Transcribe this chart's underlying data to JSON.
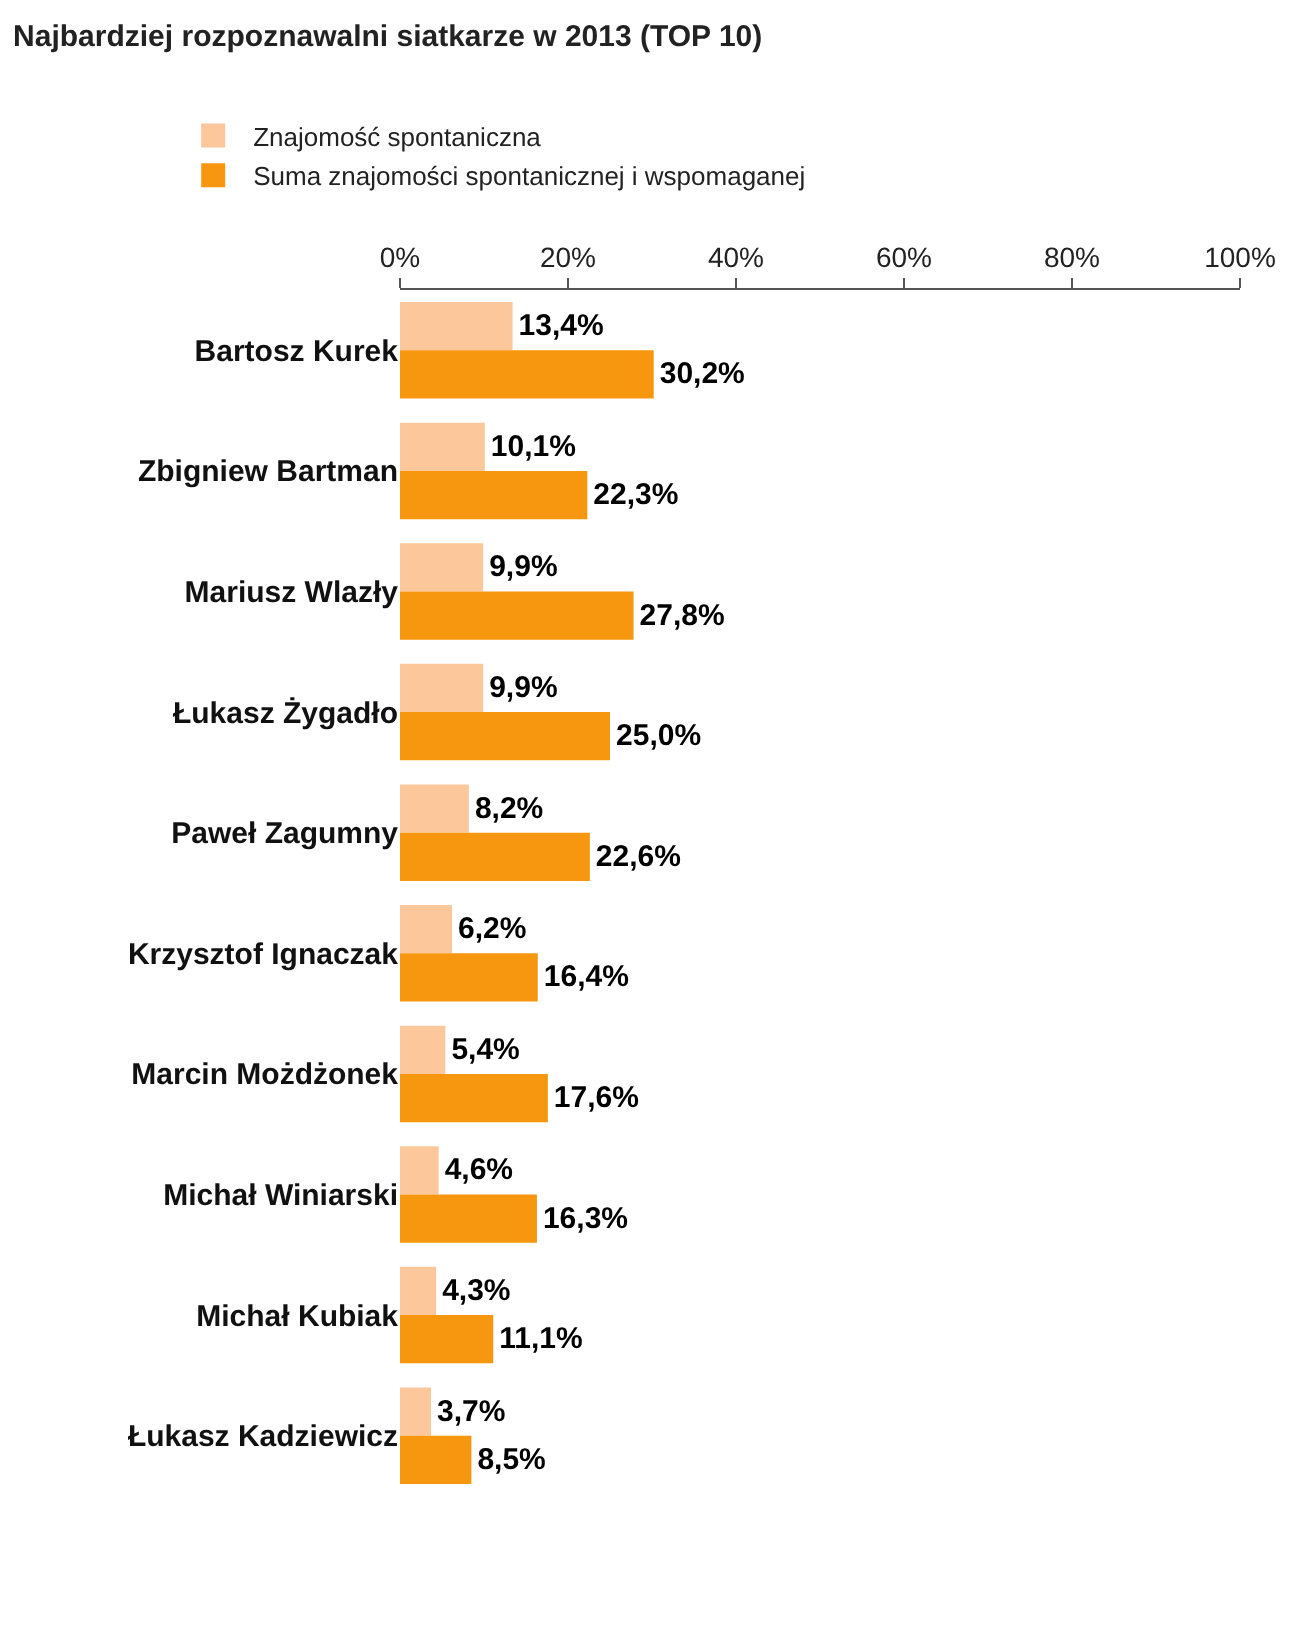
{
  "chart_data": {
    "type": "bar",
    "orientation": "horizontal",
    "title": "Najbardziej rozpoznawalni siatkarze w 2013 (TOP 10)",
    "categories": [
      "Bartosz Kurek",
      "Zbigniew Bartman",
      "Mariusz Wlazły",
      "Łukasz Żygadło",
      "Paweł Zagumny",
      "Krzysztof Ignaczak",
      "Marcin Możdżonek",
      "Michał Winiarski",
      "Michał Kubiak",
      "Łukasz Kadziewicz"
    ],
    "series": [
      {
        "name": "Znajomość spontaniczna",
        "color": "#fcc89b",
        "values": [
          13.4,
          10.1,
          9.9,
          9.9,
          8.2,
          6.2,
          5.4,
          4.6,
          4.3,
          3.7
        ],
        "value_labels": [
          "13,4%",
          "10,1%",
          "9,9%",
          "9,9%",
          "8,2%",
          "6,2%",
          "5,4%",
          "4,6%",
          "4,3%",
          "3,7%"
        ]
      },
      {
        "name": "Suma znajomości spontanicznej i wspomaganej",
        "color": "#f7960f",
        "values": [
          30.2,
          22.3,
          27.8,
          25.0,
          22.6,
          16.4,
          17.6,
          16.3,
          11.1,
          8.5
        ],
        "value_labels": [
          "30,2%",
          "22,3%",
          "27,8%",
          "25,0%",
          "22,6%",
          "16,4%",
          "17,6%",
          "16,3%",
          "11,1%",
          "8,5%"
        ]
      }
    ],
    "xlim": [
      0,
      100
    ],
    "xticks": [
      {
        "value": 0,
        "label": "0%"
      },
      {
        "value": 20,
        "label": "20%"
      },
      {
        "value": 40,
        "label": "40%"
      },
      {
        "value": 60,
        "label": "60%"
      },
      {
        "value": 80,
        "label": "80%"
      },
      {
        "value": 100,
        "label": "100%"
      }
    ],
    "legend": "top left"
  }
}
